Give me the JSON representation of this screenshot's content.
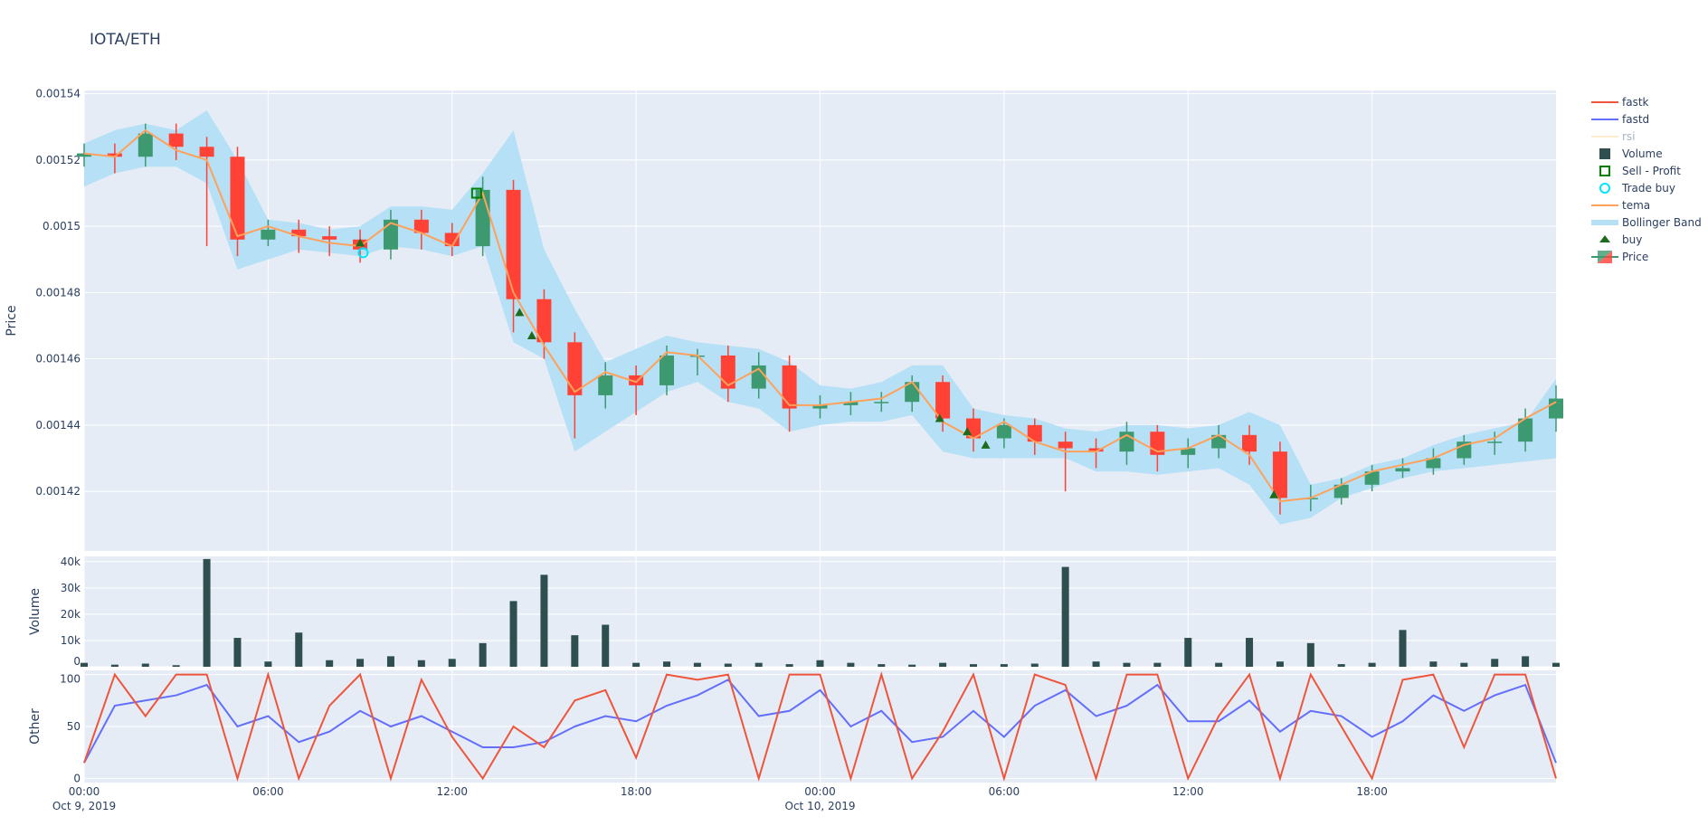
{
  "title": "IOTA/ETH",
  "colors": {
    "plot_bg": "#e5ecf6",
    "grid": "#ffffff",
    "increasing": "#3d9970",
    "decreasing": "#ff4136",
    "fastk": "#ef553b",
    "fastd": "#636efa",
    "rsi": "#fedc9a",
    "volume": "#2f4f4f",
    "sell_profit": "#008000",
    "trade_buy": "#00e5ff",
    "tema": "#ffa15a",
    "bollinger": "#b6e0f6",
    "buy": "#1e6b1e"
  },
  "legend": {
    "placement": "right",
    "items": [
      {
        "label": "fastk",
        "icon": "line",
        "color_key": "fastk",
        "hidden": false
      },
      {
        "label": "fastd",
        "icon": "line",
        "color_key": "fastd",
        "hidden": false
      },
      {
        "label": "rsi",
        "icon": "line",
        "color_key": "rsi",
        "hidden": true
      },
      {
        "label": "Volume",
        "icon": "square",
        "color_key": "volume",
        "hidden": false
      },
      {
        "label": "Sell - Profit",
        "icon": "hollow-square",
        "color_key": "sell_profit",
        "hidden": false
      },
      {
        "label": "Trade buy",
        "icon": "hollow-circle",
        "color_key": "trade_buy",
        "hidden": false
      },
      {
        "label": "tema",
        "icon": "line",
        "color_key": "tema",
        "hidden": false
      },
      {
        "label": "Bollinger Band",
        "icon": "band",
        "color_key": "bollinger",
        "hidden": false
      },
      {
        "label": "buy",
        "icon": "triangle-up",
        "color_key": "buy",
        "hidden": false
      },
      {
        "label": "Price",
        "icon": "candle",
        "color_key": "increasing",
        "hidden": false
      }
    ]
  },
  "chart_data": [
    {
      "type": "candlestick",
      "panel": "price",
      "ylabel": "Price",
      "ylim": [
        0.001402,
        0.001541
      ],
      "yticks": [
        "0.00142",
        "0.00144",
        "0.00146",
        "0.00148",
        "0.0015",
        "0.00152",
        "0.00154"
      ],
      "ytick_values": [
        0.00142,
        0.00144,
        0.00146,
        0.00148,
        0.0015,
        0.00152,
        0.00154
      ],
      "grid": true,
      "time": [
        "2019-10-09T00:00",
        "2019-10-09T01:00",
        "2019-10-09T02:00",
        "2019-10-09T03:00",
        "2019-10-09T04:00",
        "2019-10-09T05:00",
        "2019-10-09T06:00",
        "2019-10-09T07:00",
        "2019-10-09T08:00",
        "2019-10-09T09:00",
        "2019-10-09T10:00",
        "2019-10-09T11:00",
        "2019-10-09T12:00",
        "2019-10-09T13:00",
        "2019-10-09T14:00",
        "2019-10-09T15:00",
        "2019-10-09T16:00",
        "2019-10-09T17:00",
        "2019-10-09T18:00",
        "2019-10-09T19:00",
        "2019-10-09T20:00",
        "2019-10-09T21:00",
        "2019-10-09T22:00",
        "2019-10-09T23:00",
        "2019-10-10T00:00",
        "2019-10-10T01:00",
        "2019-10-10T02:00",
        "2019-10-10T03:00",
        "2019-10-10T04:00",
        "2019-10-10T05:00",
        "2019-10-10T06:00",
        "2019-10-10T07:00",
        "2019-10-10T08:00",
        "2019-10-10T09:00",
        "2019-10-10T10:00",
        "2019-10-10T11:00",
        "2019-10-10T12:00",
        "2019-10-10T13:00",
        "2019-10-10T14:00",
        "2019-10-10T15:00",
        "2019-10-10T16:00",
        "2019-10-10T17:00",
        "2019-10-10T18:00",
        "2019-10-10T19:00",
        "2019-10-10T20:00",
        "2019-10-10T21:00",
        "2019-10-10T22:00",
        "2019-10-10T23:00",
        "2019-10-11T00:00"
      ],
      "open": [
        0.001521,
        0.001522,
        0.001521,
        0.001528,
        0.001524,
        0.001521,
        0.001496,
        0.001499,
        0.001497,
        0.001496,
        0.001493,
        0.001502,
        0.001498,
        0.001494,
        0.001511,
        0.001478,
        0.001465,
        0.001449,
        0.001455,
        0.001452,
        0.001461,
        0.001461,
        0.001451,
        0.001458,
        0.001445,
        0.001446,
        0.001447,
        0.001447,
        0.001453,
        0.001442,
        0.001436,
        0.00144,
        0.001435,
        0.001433,
        0.001432,
        0.001438,
        0.001431,
        0.001433,
        0.001437,
        0.001432,
        0.001418,
        0.001418,
        0.001422,
        0.001426,
        0.001427,
        0.00143,
        0.001435,
        0.001435,
        0.001442
      ],
      "high": [
        0.001525,
        0.001525,
        0.001531,
        0.001531,
        0.001527,
        0.001524,
        0.001502,
        0.001502,
        0.0015,
        0.001499,
        0.001505,
        0.001505,
        0.001501,
        0.001515,
        0.001514,
        0.001481,
        0.001468,
        0.001459,
        0.001458,
        0.001464,
        0.001463,
        0.001464,
        0.001462,
        0.001461,
        0.001449,
        0.00145,
        0.00145,
        0.001455,
        0.001455,
        0.001445,
        0.001442,
        0.001442,
        0.001438,
        0.001436,
        0.001441,
        0.00144,
        0.001436,
        0.00144,
        0.00144,
        0.001435,
        0.001422,
        0.001424,
        0.001428,
        0.00143,
        0.001433,
        0.001437,
        0.001438,
        0.001445,
        0.001452
      ],
      "low": [
        0.001518,
        0.001516,
        0.001518,
        0.00152,
        0.001494,
        0.001491,
        0.001494,
        0.001492,
        0.001491,
        0.001489,
        0.00149,
        0.001493,
        0.001491,
        0.001491,
        0.001468,
        0.00146,
        0.001436,
        0.001445,
        0.001443,
        0.001449,
        0.001455,
        0.001447,
        0.001448,
        0.001438,
        0.001442,
        0.001443,
        0.001444,
        0.001444,
        0.001438,
        0.001432,
        0.001433,
        0.001431,
        0.00142,
        0.001427,
        0.001428,
        0.001426,
        0.001427,
        0.00143,
        0.001428,
        0.001413,
        0.001414,
        0.001416,
        0.00142,
        0.001424,
        0.001425,
        0.001428,
        0.001431,
        0.001432,
        0.001438
      ],
      "close": [
        0.001522,
        0.001521,
        0.001528,
        0.001524,
        0.001521,
        0.001496,
        0.001499,
        0.001497,
        0.001496,
        0.001493,
        0.001502,
        0.001498,
        0.001494,
        0.001511,
        0.001478,
        0.001465,
        0.001449,
        0.001455,
        0.001452,
        0.001461,
        0.001461,
        0.001451,
        0.001458,
        0.001445,
        0.001446,
        0.001447,
        0.001447,
        0.001453,
        0.001442,
        0.001436,
        0.00144,
        0.001435,
        0.001433,
        0.001432,
        0.001438,
        0.001431,
        0.001433,
        0.001437,
        0.001432,
        0.001418,
        0.001418,
        0.001422,
        0.001426,
        0.001427,
        0.00143,
        0.001435,
        0.001435,
        0.001442,
        0.001448
      ],
      "tema": [
        0.001522,
        0.001521,
        0.001529,
        0.001523,
        0.00152,
        0.001497,
        0.0015,
        0.001497,
        0.001495,
        0.001494,
        0.001501,
        0.001498,
        0.001494,
        0.00151,
        0.00148,
        0.001464,
        0.00145,
        0.001456,
        0.001453,
        0.001462,
        0.001461,
        0.001452,
        0.001457,
        0.001446,
        0.001446,
        0.001447,
        0.001448,
        0.001453,
        0.001441,
        0.001436,
        0.001441,
        0.001435,
        0.001432,
        0.001432,
        0.001437,
        0.001432,
        0.001433,
        0.001437,
        0.001431,
        0.001417,
        0.001418,
        0.001422,
        0.001426,
        0.001428,
        0.00143,
        0.001434,
        0.001436,
        0.001442,
        0.001447
      ],
      "bollinger_upper": [
        0.001525,
        0.001529,
        0.001531,
        0.001529,
        0.001535,
        0.00152,
        0.001502,
        0.001501,
        0.001499,
        0.0015,
        0.001506,
        0.001506,
        0.001505,
        0.001516,
        0.001529,
        0.001493,
        0.001475,
        0.001459,
        0.001463,
        0.001467,
        0.001465,
        0.001464,
        0.001463,
        0.001459,
        0.001452,
        0.001451,
        0.001453,
        0.001458,
        0.001458,
        0.001445,
        0.001443,
        0.001442,
        0.001439,
        0.001438,
        0.00144,
        0.00144,
        0.001439,
        0.00144,
        0.001444,
        0.00144,
        0.001422,
        0.001424,
        0.001428,
        0.00143,
        0.001434,
        0.001437,
        0.001439,
        0.001441,
        0.001454
      ],
      "bollinger_lower": [
        0.001512,
        0.001516,
        0.001518,
        0.001518,
        0.001513,
        0.001487,
        0.00149,
        0.001493,
        0.001492,
        0.001491,
        0.001494,
        0.001493,
        0.001491,
        0.001494,
        0.001465,
        0.00146,
        0.001432,
        0.001438,
        0.001444,
        0.00145,
        0.001453,
        0.001447,
        0.001445,
        0.001438,
        0.00144,
        0.001441,
        0.001441,
        0.001443,
        0.001432,
        0.00143,
        0.00143,
        0.00143,
        0.00143,
        0.001426,
        0.001426,
        0.001425,
        0.001426,
        0.001427,
        0.001422,
        0.00141,
        0.001412,
        0.001418,
        0.001421,
        0.001424,
        0.001426,
        0.001427,
        0.001428,
        0.001429,
        0.00143
      ],
      "buy_markers": [
        {
          "time": "2019-10-09T09:00",
          "price": 0.001495
        },
        {
          "time": "2019-10-09T14:12",
          "price": 0.001474
        },
        {
          "time": "2019-10-09T14:36",
          "price": 0.001467
        },
        {
          "time": "2019-10-10T03:54",
          "price": 0.001442
        },
        {
          "time": "2019-10-10T04:48",
          "price": 0.001438
        },
        {
          "time": "2019-10-10T05:24",
          "price": 0.001434
        },
        {
          "time": "2019-10-10T14:48",
          "price": 0.001419
        }
      ],
      "trade_buy_markers": [
        {
          "time": "2019-10-09T09:06",
          "price": 0.001492
        }
      ],
      "sell_profit_markers": [
        {
          "time": "2019-10-09T12:48",
          "price": 0.00151
        }
      ]
    },
    {
      "type": "bar",
      "panel": "volume",
      "ylabel": "Volume",
      "ylim": [
        0,
        42000
      ],
      "yticks": [
        "0",
        "10k",
        "20k",
        "30k",
        "40k"
      ],
      "ytick_values": [
        0,
        10000,
        20000,
        30000,
        40000
      ],
      "grid": true,
      "values": [
        1500,
        800,
        1200,
        600,
        41000,
        11000,
        2000,
        13000,
        2500,
        3000,
        4000,
        2500,
        3000,
        9000,
        25000,
        35000,
        12000,
        16000,
        1500,
        2000,
        1500,
        1200,
        1500,
        1000,
        2500,
        1500,
        1000,
        800,
        1500,
        1000,
        1000,
        1200,
        38000,
        2000,
        1500,
        1500,
        11000,
        1500,
        11000,
        2000,
        9000,
        1000,
        1500,
        14000,
        2000,
        1500,
        3000,
        4000,
        1500
      ]
    },
    {
      "type": "line",
      "panel": "other",
      "ylabel": "Other",
      "ylim": [
        -4,
        104
      ],
      "yticks": [
        "0",
        "50",
        "100"
      ],
      "ytick_values": [
        0,
        50,
        100
      ],
      "grid": true,
      "series": [
        {
          "name": "fastk",
          "values": [
            15,
            100,
            60,
            100,
            100,
            0,
            100,
            0,
            70,
            100,
            0,
            95,
            40,
            0,
            50,
            30,
            75,
            85,
            20,
            100,
            95,
            100,
            0,
            100,
            100,
            0,
            100,
            0,
            45,
            100,
            0,
            100,
            90,
            0,
            100,
            100,
            0,
            60,
            100,
            0,
            100,
            50,
            0,
            95,
            100,
            30,
            100,
            100,
            0
          ]
        },
        {
          "name": "fastd",
          "values": [
            15,
            70,
            75,
            80,
            90,
            50,
            60,
            35,
            45,
            65,
            50,
            60,
            45,
            30,
            30,
            35,
            50,
            60,
            55,
            70,
            80,
            95,
            60,
            65,
            85,
            50,
            65,
            35,
            40,
            65,
            40,
            70,
            85,
            60,
            70,
            90,
            55,
            55,
            75,
            45,
            65,
            60,
            40,
            55,
            80,
            65,
            80,
            90,
            15
          ]
        }
      ]
    }
  ],
  "xaxis": {
    "ticks": [
      {
        "time": "2019-10-09T00:00",
        "label": "00:00",
        "sublabel": "Oct 9, 2019"
      },
      {
        "time": "2019-10-09T06:00",
        "label": "06:00",
        "sublabel": ""
      },
      {
        "time": "2019-10-09T12:00",
        "label": "12:00",
        "sublabel": ""
      },
      {
        "time": "2019-10-09T18:00",
        "label": "18:00",
        "sublabel": ""
      },
      {
        "time": "2019-10-10T00:00",
        "label": "00:00",
        "sublabel": "Oct 10, 2019"
      },
      {
        "time": "2019-10-10T06:00",
        "label": "06:00",
        "sublabel": ""
      },
      {
        "time": "2019-10-10T12:00",
        "label": "12:00",
        "sublabel": ""
      },
      {
        "time": "2019-10-10T18:00",
        "label": "18:00",
        "sublabel": ""
      }
    ],
    "range": [
      "2019-10-09T00:00",
      "2019-10-11T00:00"
    ]
  }
}
